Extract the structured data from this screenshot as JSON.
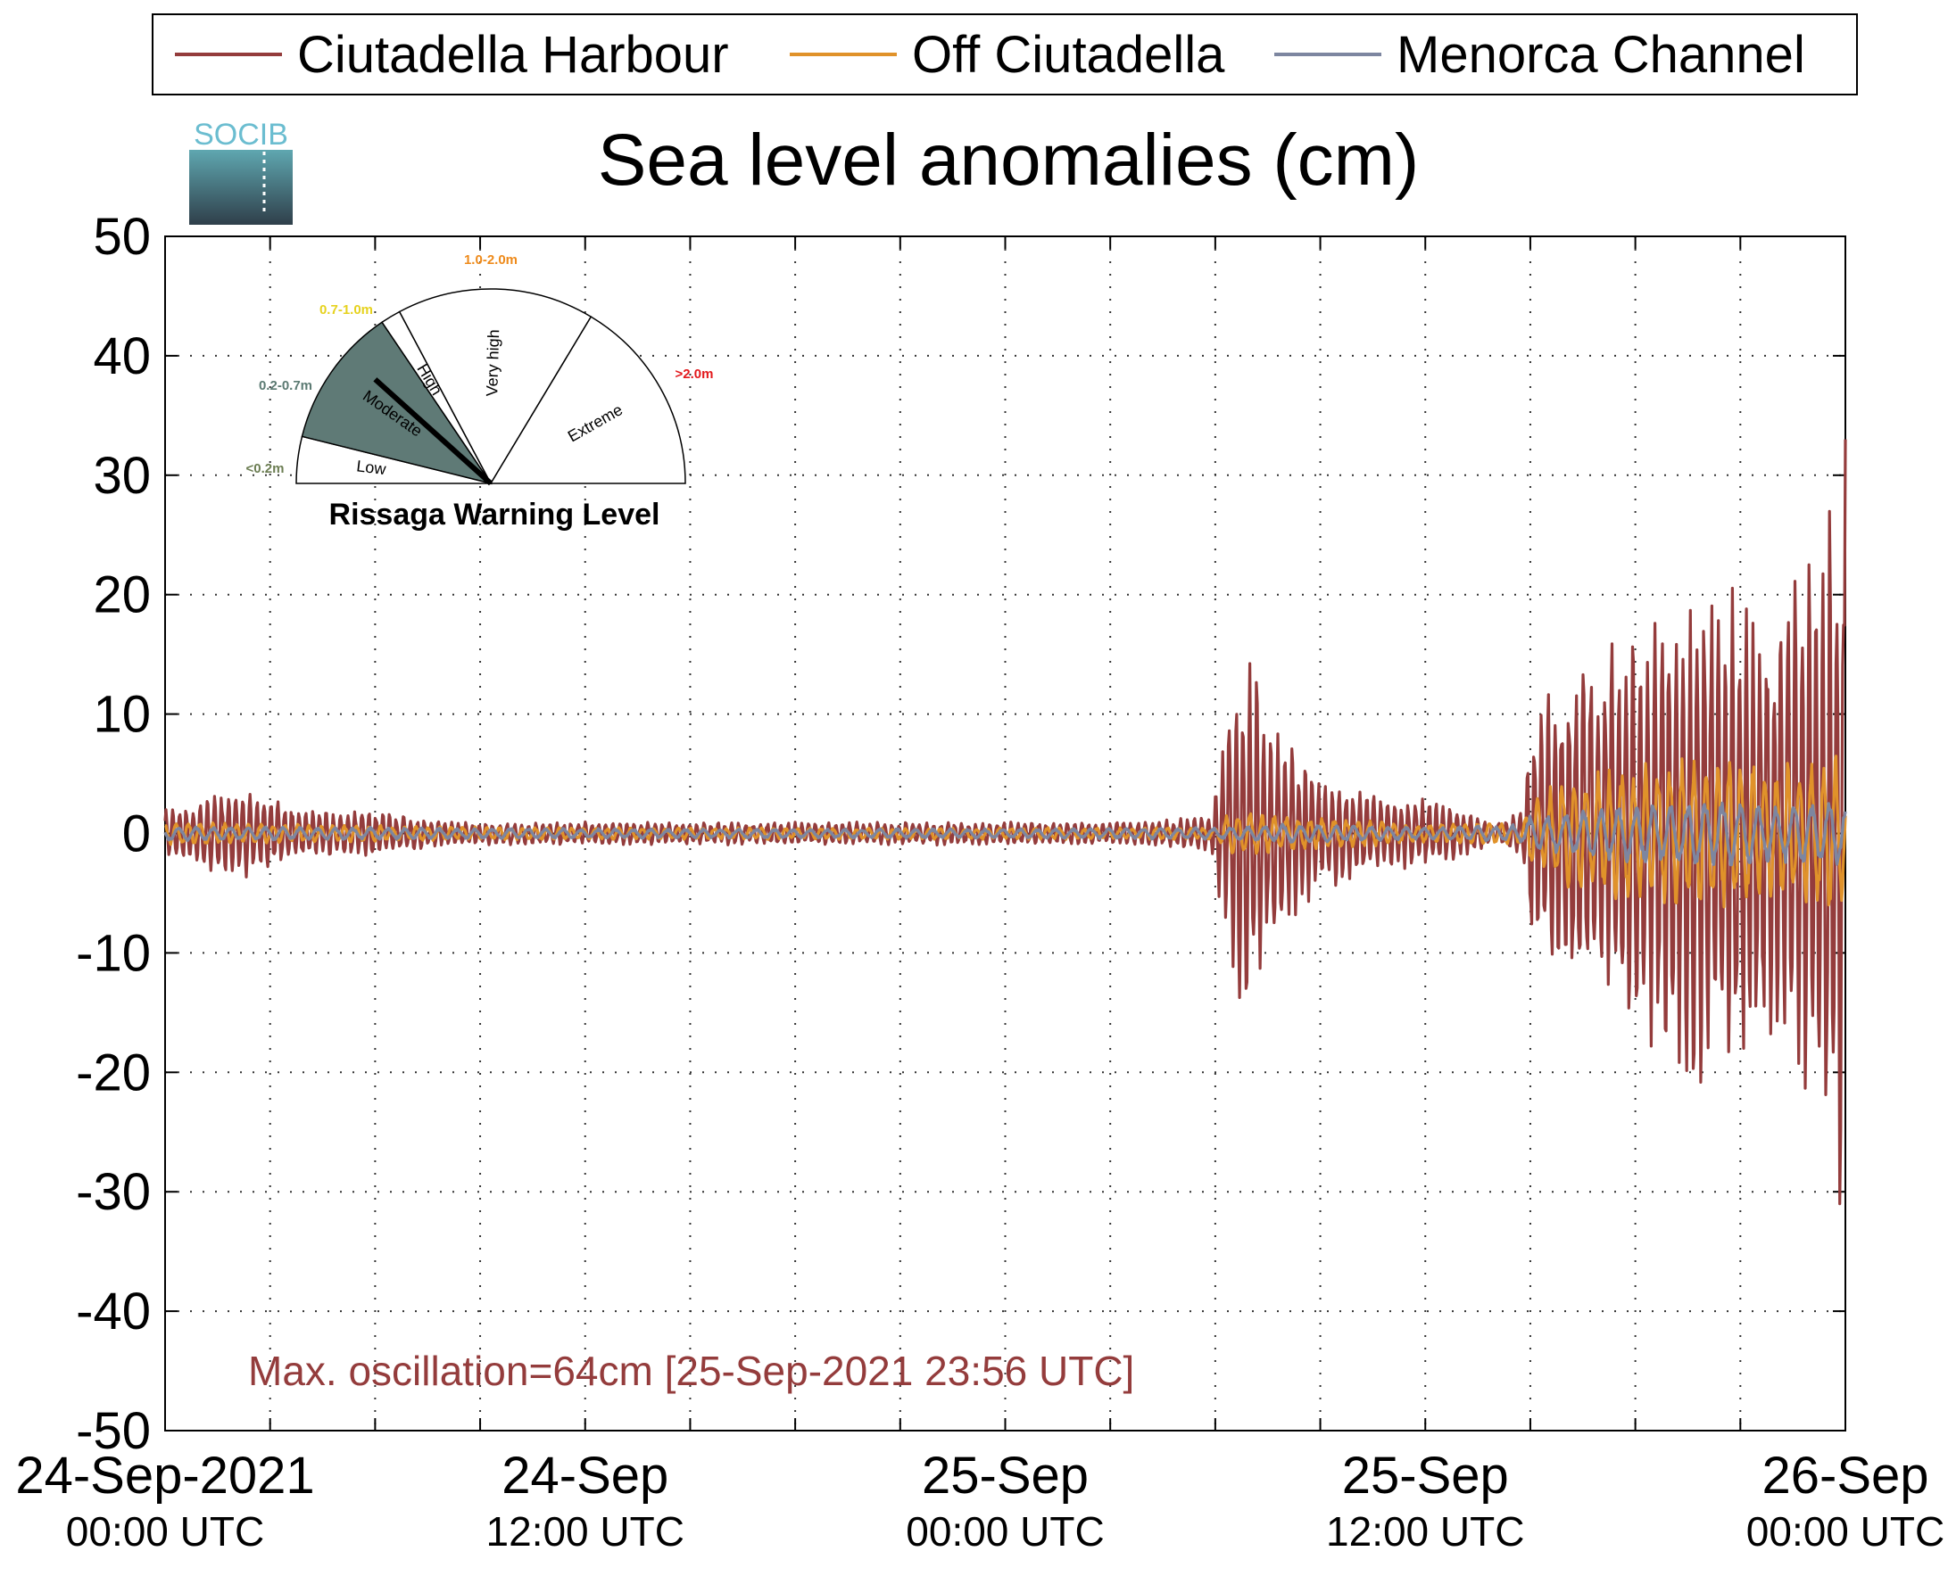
{
  "legend": {
    "items": [
      {
        "label": "Ciutadella Harbour",
        "color": "#943c3c"
      },
      {
        "label": "Off Ciutadella",
        "color": "#e0922a"
      },
      {
        "label": "Menorca Channel",
        "color": "#7d86a0"
      }
    ]
  },
  "logo": {
    "text": "SOCIB"
  },
  "gauge": {
    "title": "Rissaga Warning Level",
    "current_level": "Moderate",
    "sectors": [
      {
        "name": "Low",
        "range": "<0.2m",
        "range_color": "#6b7d52"
      },
      {
        "name": "Moderate",
        "range": "0.2-0.7m",
        "range_color": "#5b7a72"
      },
      {
        "name": "High",
        "range": "0.7-1.0m",
        "range_color": "#e6d21e"
      },
      {
        "name": "Very high",
        "range": "1.0-2.0m",
        "range_color": "#ee8a1a"
      },
      {
        "name": "Extreme",
        "range": ">2.0m",
        "range_color": "#e3191c"
      }
    ]
  },
  "annotation": {
    "text": "Max. oscillation=64cm [25-Sep-2021 23:56 UTC]",
    "color": "#943c3c"
  },
  "chart_data": {
    "type": "line",
    "title": "Sea level anomalies (cm)",
    "xlabel": "",
    "ylabel": "",
    "x_unit": "hours since 24-Sep-2021 00:00 UTC",
    "xlim": [
      0,
      48
    ],
    "ylim": [
      -50,
      50
    ],
    "grid": true,
    "legend_position": "top",
    "yticks": [
      50,
      40,
      30,
      20,
      10,
      0,
      -10,
      -20,
      -30,
      -40,
      -50
    ],
    "xtick_labels": [
      {
        "x": 0,
        "date": "24-Sep-2021",
        "time": "00:00 UTC"
      },
      {
        "x": 12,
        "date": "24-Sep",
        "time": "12:00 UTC"
      },
      {
        "x": 24,
        "date": "25-Sep",
        "time": "00:00 UTC"
      },
      {
        "x": 36,
        "date": "25-Sep",
        "time": "12:00 UTC"
      },
      {
        "x": 48,
        "date": "26-Sep",
        "time": "00:00 UTC"
      }
    ],
    "series": [
      {
        "name": "Ciutadella Harbour",
        "color": "#943c3c",
        "amplitude_envelope": [
          [
            0,
            2
          ],
          [
            2,
            4
          ],
          [
            3,
            3
          ],
          [
            4,
            2
          ],
          [
            6,
            2
          ],
          [
            8,
            1
          ],
          [
            10,
            1
          ],
          [
            12,
            1
          ],
          [
            16,
            1
          ],
          [
            18,
            1
          ],
          [
            22,
            1
          ],
          [
            24,
            1
          ],
          [
            26,
            1
          ],
          [
            28,
            1
          ],
          [
            29.9,
            1.5
          ],
          [
            30.4,
            12
          ],
          [
            31,
            16
          ],
          [
            31.5,
            9
          ],
          [
            32,
            8
          ],
          [
            33,
            5
          ],
          [
            34,
            4
          ],
          [
            35,
            3
          ],
          [
            36,
            3
          ],
          [
            37,
            2
          ],
          [
            38,
            1
          ],
          [
            38.8,
            2
          ],
          [
            39,
            10
          ],
          [
            40,
            14
          ],
          [
            41,
            16
          ],
          [
            42,
            17
          ],
          [
            43,
            20
          ],
          [
            44,
            22
          ],
          [
            45,
            21
          ],
          [
            46,
            19
          ],
          [
            47,
            24
          ],
          [
            48,
            31
          ]
        ],
        "peak_max": 33,
        "peak_min": -31
      },
      {
        "name": "Off Ciutadella",
        "color": "#e0922a",
        "amplitude_envelope": [
          [
            0,
            1
          ],
          [
            6,
            0.7
          ],
          [
            12,
            0.5
          ],
          [
            24,
            0.5
          ],
          [
            30,
            0.5
          ],
          [
            30.4,
            2
          ],
          [
            32,
            1.5
          ],
          [
            36,
            0.8
          ],
          [
            38.8,
            1
          ],
          [
            39,
            3
          ],
          [
            40,
            5
          ],
          [
            42,
            6
          ],
          [
            44,
            7
          ],
          [
            46,
            6
          ],
          [
            48,
            7
          ]
        ]
      },
      {
        "name": "Menorca Channel",
        "color": "#7d86a0",
        "amplitude_envelope": [
          [
            0,
            0.6
          ],
          [
            12,
            0.4
          ],
          [
            24,
            0.4
          ],
          [
            30,
            0.5
          ],
          [
            32,
            0.8
          ],
          [
            36,
            0.5
          ],
          [
            38.8,
            0.8
          ],
          [
            39,
            1.5
          ],
          [
            42,
            2.5
          ],
          [
            44,
            3
          ],
          [
            46,
            2.5
          ],
          [
            48,
            3
          ]
        ]
      }
    ]
  }
}
